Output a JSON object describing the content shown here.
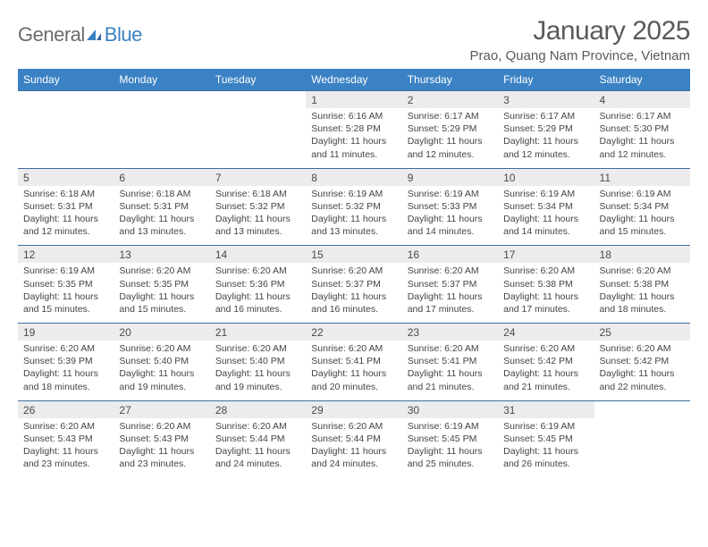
{
  "logo": {
    "general": "General",
    "blue": "Blue"
  },
  "title": "January 2025",
  "location": "Prao, Quang Nam Province, Vietnam",
  "colors": {
    "header_bg": "#3b82c4",
    "header_text": "#ffffff",
    "date_bg": "#ececec",
    "rule": "#3b6fa0",
    "title_color": "#5a5a5a"
  },
  "day_names": [
    "Sunday",
    "Monday",
    "Tuesday",
    "Wednesday",
    "Thursday",
    "Friday",
    "Saturday"
  ],
  "weeks": [
    [
      null,
      null,
      null,
      {
        "d": "1",
        "sr": "Sunrise: 6:16 AM",
        "ss": "Sunset: 5:28 PM",
        "dl": "Daylight: 11 hours and 11 minutes."
      },
      {
        "d": "2",
        "sr": "Sunrise: 6:17 AM",
        "ss": "Sunset: 5:29 PM",
        "dl": "Daylight: 11 hours and 12 minutes."
      },
      {
        "d": "3",
        "sr": "Sunrise: 6:17 AM",
        "ss": "Sunset: 5:29 PM",
        "dl": "Daylight: 11 hours and 12 minutes."
      },
      {
        "d": "4",
        "sr": "Sunrise: 6:17 AM",
        "ss": "Sunset: 5:30 PM",
        "dl": "Daylight: 11 hours and 12 minutes."
      }
    ],
    [
      {
        "d": "5",
        "sr": "Sunrise: 6:18 AM",
        "ss": "Sunset: 5:31 PM",
        "dl": "Daylight: 11 hours and 12 minutes."
      },
      {
        "d": "6",
        "sr": "Sunrise: 6:18 AM",
        "ss": "Sunset: 5:31 PM",
        "dl": "Daylight: 11 hours and 13 minutes."
      },
      {
        "d": "7",
        "sr": "Sunrise: 6:18 AM",
        "ss": "Sunset: 5:32 PM",
        "dl": "Daylight: 11 hours and 13 minutes."
      },
      {
        "d": "8",
        "sr": "Sunrise: 6:19 AM",
        "ss": "Sunset: 5:32 PM",
        "dl": "Daylight: 11 hours and 13 minutes."
      },
      {
        "d": "9",
        "sr": "Sunrise: 6:19 AM",
        "ss": "Sunset: 5:33 PM",
        "dl": "Daylight: 11 hours and 14 minutes."
      },
      {
        "d": "10",
        "sr": "Sunrise: 6:19 AM",
        "ss": "Sunset: 5:34 PM",
        "dl": "Daylight: 11 hours and 14 minutes."
      },
      {
        "d": "11",
        "sr": "Sunrise: 6:19 AM",
        "ss": "Sunset: 5:34 PM",
        "dl": "Daylight: 11 hours and 15 minutes."
      }
    ],
    [
      {
        "d": "12",
        "sr": "Sunrise: 6:19 AM",
        "ss": "Sunset: 5:35 PM",
        "dl": "Daylight: 11 hours and 15 minutes."
      },
      {
        "d": "13",
        "sr": "Sunrise: 6:20 AM",
        "ss": "Sunset: 5:35 PM",
        "dl": "Daylight: 11 hours and 15 minutes."
      },
      {
        "d": "14",
        "sr": "Sunrise: 6:20 AM",
        "ss": "Sunset: 5:36 PM",
        "dl": "Daylight: 11 hours and 16 minutes."
      },
      {
        "d": "15",
        "sr": "Sunrise: 6:20 AM",
        "ss": "Sunset: 5:37 PM",
        "dl": "Daylight: 11 hours and 16 minutes."
      },
      {
        "d": "16",
        "sr": "Sunrise: 6:20 AM",
        "ss": "Sunset: 5:37 PM",
        "dl": "Daylight: 11 hours and 17 minutes."
      },
      {
        "d": "17",
        "sr": "Sunrise: 6:20 AM",
        "ss": "Sunset: 5:38 PM",
        "dl": "Daylight: 11 hours and 17 minutes."
      },
      {
        "d": "18",
        "sr": "Sunrise: 6:20 AM",
        "ss": "Sunset: 5:38 PM",
        "dl": "Daylight: 11 hours and 18 minutes."
      }
    ],
    [
      {
        "d": "19",
        "sr": "Sunrise: 6:20 AM",
        "ss": "Sunset: 5:39 PM",
        "dl": "Daylight: 11 hours and 18 minutes."
      },
      {
        "d": "20",
        "sr": "Sunrise: 6:20 AM",
        "ss": "Sunset: 5:40 PM",
        "dl": "Daylight: 11 hours and 19 minutes."
      },
      {
        "d": "21",
        "sr": "Sunrise: 6:20 AM",
        "ss": "Sunset: 5:40 PM",
        "dl": "Daylight: 11 hours and 19 minutes."
      },
      {
        "d": "22",
        "sr": "Sunrise: 6:20 AM",
        "ss": "Sunset: 5:41 PM",
        "dl": "Daylight: 11 hours and 20 minutes."
      },
      {
        "d": "23",
        "sr": "Sunrise: 6:20 AM",
        "ss": "Sunset: 5:41 PM",
        "dl": "Daylight: 11 hours and 21 minutes."
      },
      {
        "d": "24",
        "sr": "Sunrise: 6:20 AM",
        "ss": "Sunset: 5:42 PM",
        "dl": "Daylight: 11 hours and 21 minutes."
      },
      {
        "d": "25",
        "sr": "Sunrise: 6:20 AM",
        "ss": "Sunset: 5:42 PM",
        "dl": "Daylight: 11 hours and 22 minutes."
      }
    ],
    [
      {
        "d": "26",
        "sr": "Sunrise: 6:20 AM",
        "ss": "Sunset: 5:43 PM",
        "dl": "Daylight: 11 hours and 23 minutes."
      },
      {
        "d": "27",
        "sr": "Sunrise: 6:20 AM",
        "ss": "Sunset: 5:43 PM",
        "dl": "Daylight: 11 hours and 23 minutes."
      },
      {
        "d": "28",
        "sr": "Sunrise: 6:20 AM",
        "ss": "Sunset: 5:44 PM",
        "dl": "Daylight: 11 hours and 24 minutes."
      },
      {
        "d": "29",
        "sr": "Sunrise: 6:20 AM",
        "ss": "Sunset: 5:44 PM",
        "dl": "Daylight: 11 hours and 24 minutes."
      },
      {
        "d": "30",
        "sr": "Sunrise: 6:19 AM",
        "ss": "Sunset: 5:45 PM",
        "dl": "Daylight: 11 hours and 25 minutes."
      },
      {
        "d": "31",
        "sr": "Sunrise: 6:19 AM",
        "ss": "Sunset: 5:45 PM",
        "dl": "Daylight: 11 hours and 26 minutes."
      },
      null
    ]
  ]
}
